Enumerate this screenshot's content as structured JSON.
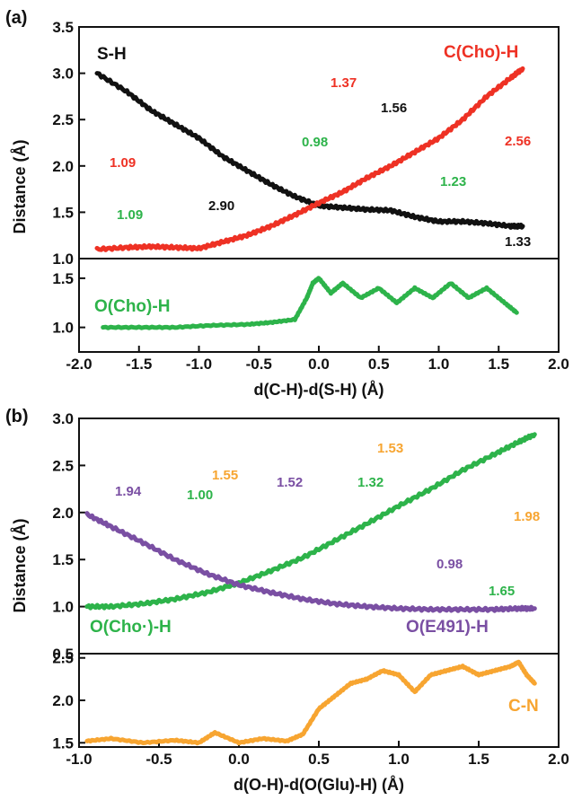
{
  "colors": {
    "black": "#111111",
    "red": "#ee3124",
    "green": "#2db34a",
    "purple": "#7a4fa3",
    "orange": "#f7a531"
  },
  "chart_data": [
    {
      "panel": "(a)",
      "type": "line",
      "xlabel": "d(C-H)-d(S-H) (Å)",
      "ylabel": "Distance (Å)",
      "xlim": [
        -2.0,
        2.0
      ],
      "xticks": [
        "-2.0",
        "-1.5",
        "-1.0",
        "-0.5",
        "0.0",
        "0.5",
        "1.0",
        "1.5",
        "2.0"
      ],
      "top": {
        "ylim": [
          1.0,
          3.5
        ],
        "yticks": [
          "1.0",
          "1.5",
          "2.0",
          "2.5",
          "3.0",
          "3.5"
        ],
        "series": [
          {
            "name": "S-H",
            "color": "#111111",
            "x": [
              -1.85,
              -1.6,
              -1.4,
              -1.2,
              -1.0,
              -0.8,
              -0.6,
              -0.4,
              -0.2,
              0.0,
              0.2,
              0.4,
              0.6,
              0.8,
              1.0,
              1.2,
              1.4,
              1.6,
              1.7
            ],
            "y": [
              3.0,
              2.8,
              2.6,
              2.45,
              2.3,
              2.1,
              1.95,
              1.8,
              1.67,
              1.57,
              1.55,
              1.53,
              1.52,
              1.45,
              1.4,
              1.4,
              1.38,
              1.35,
              1.35
            ]
          },
          {
            "name": "C(Cho)-H",
            "color": "#ee3124",
            "x": [
              -1.85,
              -1.6,
              -1.4,
              -1.2,
              -1.0,
              -0.8,
              -0.6,
              -0.4,
              -0.2,
              0.0,
              0.2,
              0.4,
              0.6,
              0.8,
              1.0,
              1.2,
              1.4,
              1.6,
              1.7
            ],
            "y": [
              1.1,
              1.12,
              1.13,
              1.12,
              1.11,
              1.18,
              1.25,
              1.35,
              1.47,
              1.6,
              1.72,
              1.87,
              2.0,
              2.15,
              2.3,
              2.5,
              2.75,
              2.95,
              3.05
            ]
          }
        ]
      },
      "bottom": {
        "ylim": [
          0.75,
          1.7
        ],
        "yticks": [
          "1.0",
          "1.5"
        ],
        "series": [
          {
            "name": "O(Cho)-H",
            "color": "#2db34a",
            "x": [
              -1.8,
              -1.5,
              -1.2,
              -0.9,
              -0.6,
              -0.4,
              -0.2,
              -0.1,
              -0.05,
              0.0,
              0.1,
              0.2,
              0.35,
              0.5,
              0.65,
              0.8,
              0.95,
              1.1,
              1.25,
              1.4,
              1.55,
              1.65
            ],
            "y": [
              1.0,
              1.0,
              1.0,
              1.02,
              1.03,
              1.05,
              1.08,
              1.3,
              1.45,
              1.5,
              1.35,
              1.45,
              1.3,
              1.4,
              1.25,
              1.4,
              1.3,
              1.45,
              1.3,
              1.4,
              1.25,
              1.15
            ]
          }
        ]
      },
      "annotations": [
        "1.37",
        "1.56",
        "0.98",
        "1.09",
        "1.09",
        "2.90",
        "2.56",
        "1.23",
        "1.33"
      ]
    },
    {
      "panel": "(b)",
      "type": "line",
      "xlabel": "d(O-H)-d(O(Glu)-H) (Å)",
      "ylabel": "Distance (Å)",
      "xlim": [
        -1.0,
        2.0
      ],
      "xticks": [
        "-1.0",
        "-0.5",
        "0.0",
        "0.5",
        "1.0",
        "1.5",
        "2.0"
      ],
      "top": {
        "ylim": [
          0.5,
          3.0
        ],
        "yticks": [
          "0.5",
          "1.0",
          "1.5",
          "2.0",
          "2.5",
          "3.0"
        ],
        "series": [
          {
            "name": "O(Cho·)-H",
            "color": "#2db34a",
            "x": [
              -0.95,
              -0.8,
              -0.6,
              -0.4,
              -0.2,
              0.0,
              0.2,
              0.4,
              0.6,
              0.8,
              1.0,
              1.2,
              1.4,
              1.6,
              1.75,
              1.85
            ],
            "y": [
              1.0,
              1.0,
              1.03,
              1.08,
              1.15,
              1.25,
              1.38,
              1.52,
              1.7,
              1.88,
              2.07,
              2.25,
              2.45,
              2.62,
              2.75,
              2.83
            ]
          },
          {
            "name": "O(E491)-H",
            "color": "#7a4fa3",
            "x": [
              -0.95,
              -0.8,
              -0.6,
              -0.4,
              -0.2,
              0.0,
              0.2,
              0.4,
              0.6,
              0.8,
              1.0,
              1.2,
              1.4,
              1.6,
              1.75,
              1.85
            ],
            "y": [
              1.98,
              1.85,
              1.68,
              1.5,
              1.35,
              1.23,
              1.15,
              1.08,
              1.03,
              1.0,
              0.98,
              0.97,
              0.97,
              0.97,
              0.98,
              0.98
            ]
          }
        ]
      },
      "bottom": {
        "ylim": [
          1.45,
          2.55
        ],
        "yticks": [
          "1.5",
          "2.0",
          "2.5"
        ],
        "series": [
          {
            "name": "C-N",
            "color": "#f7a531",
            "x": [
              -0.95,
              -0.8,
              -0.6,
              -0.4,
              -0.25,
              -0.15,
              0.0,
              0.15,
              0.3,
              0.4,
              0.5,
              0.6,
              0.7,
              0.8,
              0.9,
              1.0,
              1.1,
              1.2,
              1.3,
              1.4,
              1.5,
              1.6,
              1.7,
              1.75,
              1.8,
              1.85
            ],
            "y": [
              1.52,
              1.55,
              1.5,
              1.53,
              1.5,
              1.62,
              1.5,
              1.55,
              1.52,
              1.6,
              1.9,
              2.05,
              2.2,
              2.25,
              2.35,
              2.3,
              2.1,
              2.3,
              2.35,
              2.4,
              2.3,
              2.35,
              2.4,
              2.45,
              2.3,
              2.2
            ]
          }
        ]
      },
      "annotations": [
        "1.55",
        "1.94",
        "1.00",
        "1.53",
        "1.52",
        "1.32",
        "1.98",
        "0.98",
        "1.65"
      ]
    }
  ]
}
